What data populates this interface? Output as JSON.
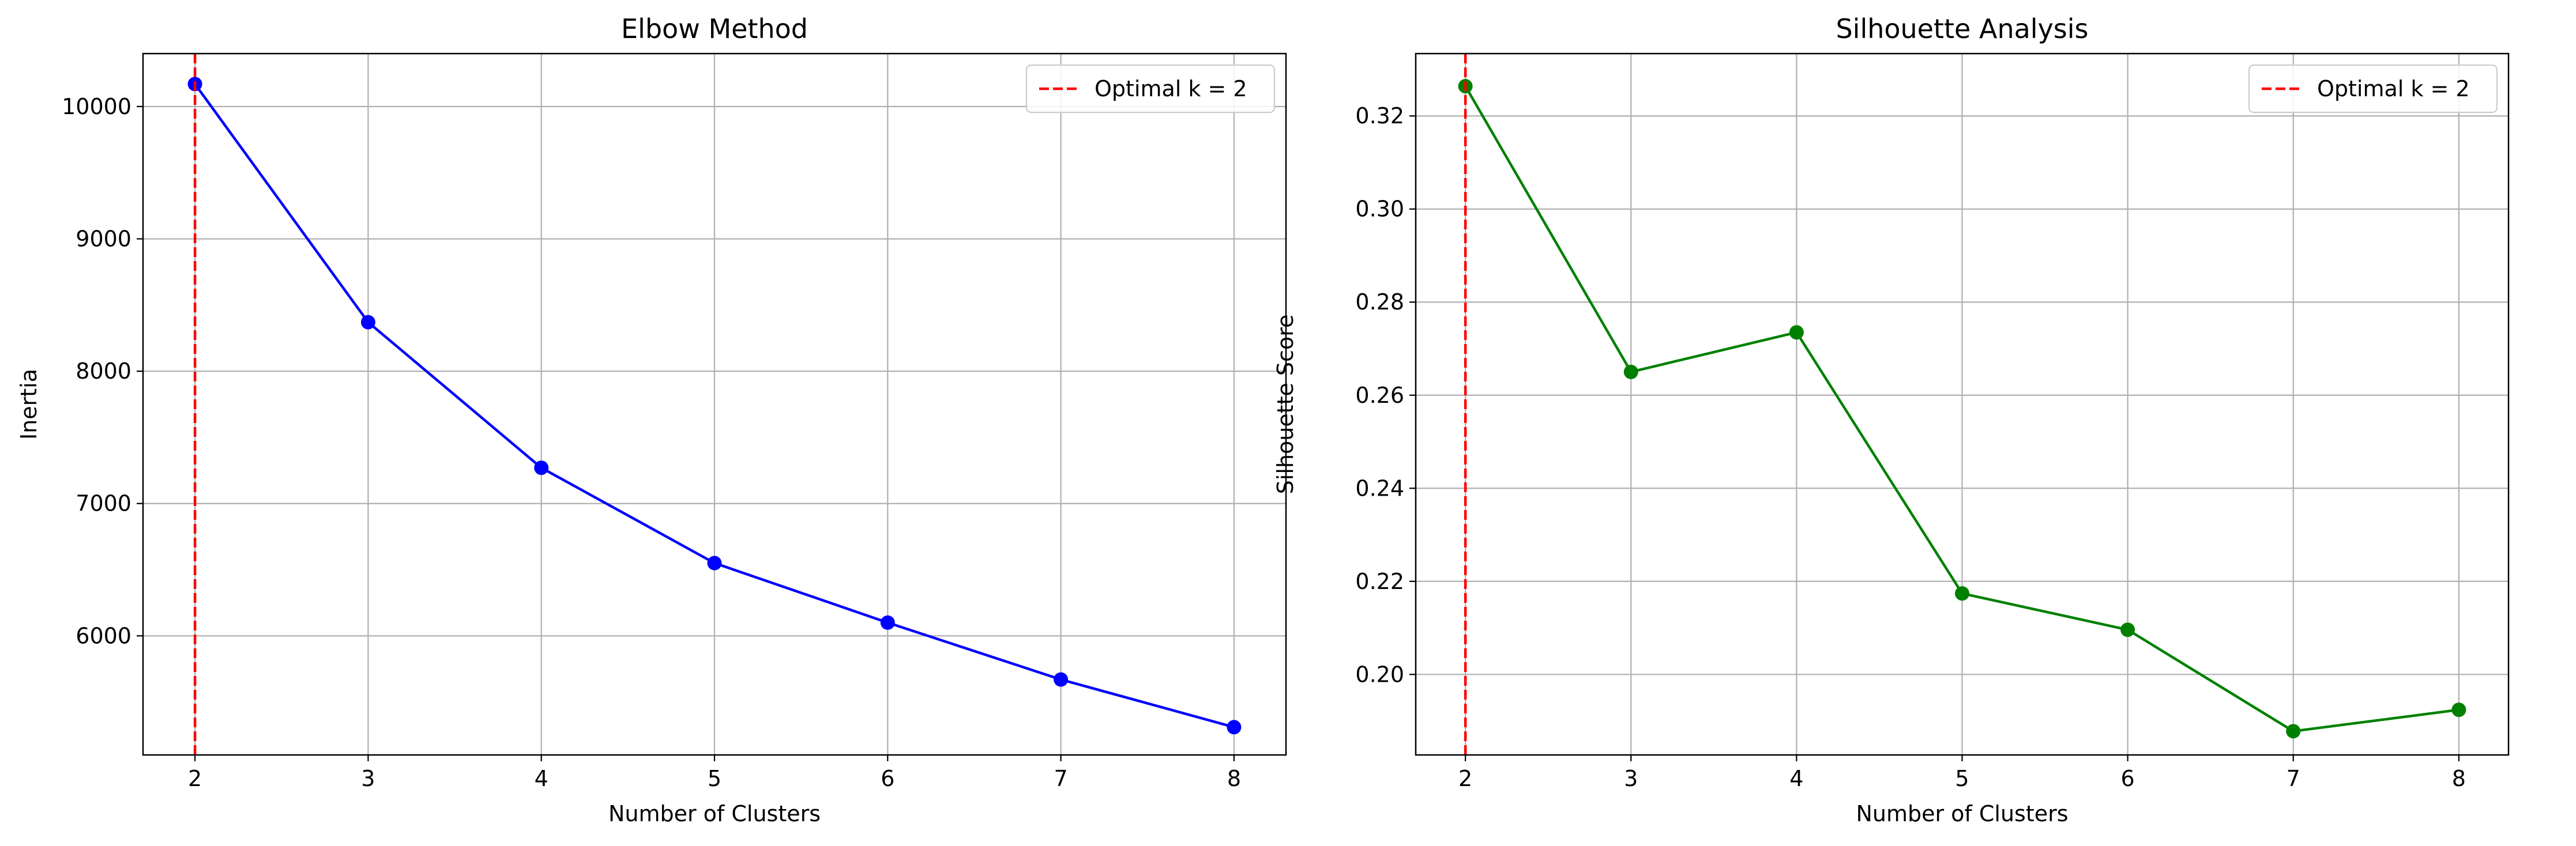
{
  "chart_data": [
    {
      "type": "line",
      "title": "Elbow Method",
      "xlabel": "Number of Clusters",
      "ylabel": "Inertia",
      "x": [
        2,
        3,
        4,
        5,
        6,
        7,
        8
      ],
      "xlim": [
        1.7,
        8.3
      ],
      "ylim": [
        5100,
        10400
      ],
      "xticks": [
        2,
        3,
        4,
        5,
        6,
        7,
        8
      ],
      "yticks": [
        6000,
        7000,
        8000,
        9000,
        10000
      ],
      "grid": true,
      "legend": "top-right",
      "series": [
        {
          "values": [
            10170,
            8370,
            7270,
            6550,
            6100,
            5670,
            5310
          ],
          "color": "#0000ff",
          "marker": "circle"
        }
      ],
      "vline": {
        "x": 2,
        "label": "Optimal k = 2",
        "color": "#ff0000",
        "style": "dashed"
      }
    },
    {
      "type": "line",
      "title": "Silhouette Analysis",
      "xlabel": "Number of Clusters",
      "ylabel": "Silhouette Score",
      "x": [
        2,
        3,
        4,
        5,
        6,
        7,
        8
      ],
      "xlim": [
        1.7,
        8.3
      ],
      "ylim": [
        0.1827,
        0.3334
      ],
      "xticks": [
        2,
        3,
        4,
        5,
        6,
        7,
        8
      ],
      "yticks": [
        0.2,
        0.22,
        0.24,
        0.26,
        0.28,
        0.3,
        0.32
      ],
      "ytick_decimals": 2,
      "grid": true,
      "legend": "top-right",
      "series": [
        {
          "values": [
            0.3264,
            0.265,
            0.2735,
            0.2174,
            0.2096,
            0.1878,
            0.1924
          ],
          "color": "#008000",
          "marker": "circle"
        }
      ],
      "vline": {
        "x": 2,
        "label": "Optimal k = 2",
        "color": "#ff0000",
        "style": "dashed"
      }
    }
  ]
}
